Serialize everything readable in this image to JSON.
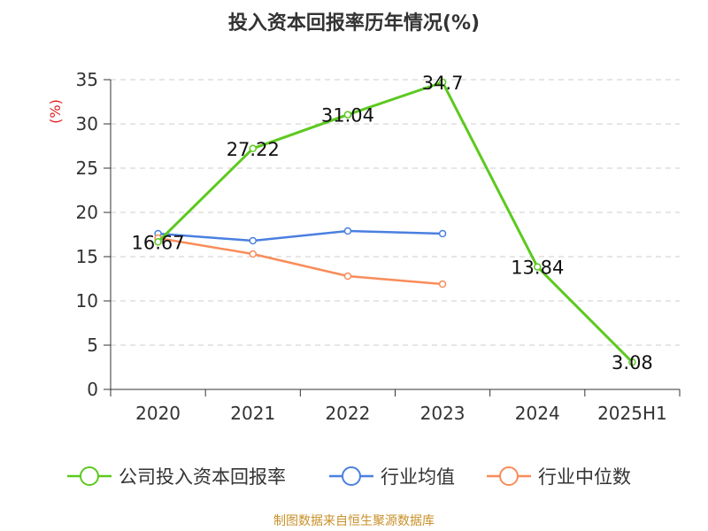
{
  "title": "投入资本回报率历年情况(%)",
  "source": "制图数据来自恒生聚源数据库",
  "chart_data": {
    "type": "line",
    "title": "投入资本回报率历年情况(%)",
    "ylabel": "(%)",
    "xlabel": "",
    "categories": [
      "2020",
      "2021",
      "2022",
      "2023",
      "2024",
      "2025H1"
    ],
    "ylim": [
      0,
      35
    ],
    "yticks": [
      0,
      5,
      10,
      15,
      20,
      25,
      30,
      35
    ],
    "grid": true,
    "legend": "bottom",
    "series": [
      {
        "name": "公司投入资本回报率",
        "color": "#5cc91f",
        "values": [
          16.67,
          27.22,
          31.04,
          34.7,
          13.84,
          3.08
        ],
        "labels": [
          "16.67",
          "27.22",
          "31.04",
          "34.7",
          "13.84",
          "3.08"
        ]
      },
      {
        "name": "行业均值",
        "color": "#4a7fe0",
        "values": [
          17.6,
          16.8,
          17.9,
          17.6,
          null,
          null
        ]
      },
      {
        "name": "行业中位数",
        "color": "#f98c5a",
        "values": [
          17.1,
          15.3,
          12.8,
          11.9,
          null,
          null
        ]
      }
    ]
  }
}
